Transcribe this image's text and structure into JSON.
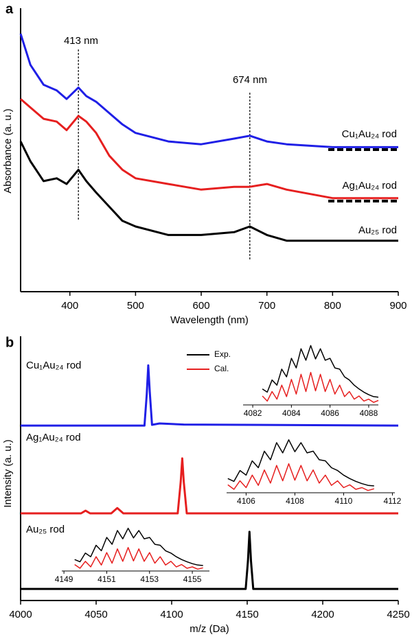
{
  "chart_data": [
    {
      "type": "line",
      "panel_label": "a",
      "xlabel": "Wavelength (nm)",
      "ylabel": "Absorbance (a. u.)",
      "xlim": [
        325,
        900
      ],
      "ylim": [
        0,
        100
      ],
      "xticks": [
        400,
        500,
        600,
        700,
        800,
        900
      ],
      "x": [
        325,
        340,
        360,
        380,
        395,
        413,
        425,
        440,
        460,
        480,
        500,
        550,
        600,
        650,
        674,
        700,
        730,
        800,
        900
      ],
      "series": [
        {
          "name": "Cu₁Au₂₄ rod",
          "color": "#1f1fe6",
          "values": [
            91,
            80,
            73,
            71,
            68,
            72,
            69,
            67,
            63,
            59,
            56,
            53,
            52,
            54,
            55,
            53,
            52,
            51,
            51
          ]
        },
        {
          "name": "Ag₁Au₂₄ rod",
          "color": "#e61f1f",
          "values": [
            68,
            65,
            61,
            60,
            57,
            62,
            60,
            56,
            48,
            43,
            40,
            38,
            36,
            37,
            37,
            38,
            36,
            33,
            33
          ]
        },
        {
          "name": "Au₂₅ rod",
          "color": "#000000",
          "values": [
            53,
            46,
            39,
            40,
            38,
            43,
            39,
            35,
            30,
            25,
            23,
            20,
            20,
            21,
            23,
            20,
            18,
            18,
            18
          ]
        }
      ],
      "annotations": [
        {
          "text": "413 nm",
          "x": 413
        },
        {
          "text": "674 nm",
          "x": 674
        }
      ]
    },
    {
      "type": "line",
      "panel_label": "b",
      "xlabel": "m/z (Da)",
      "ylabel": "Intensity (a. u.)",
      "xlim": [
        4000,
        4250
      ],
      "ylim": [
        0,
        100
      ],
      "xticks": [
        4000,
        4050,
        4100,
        4150,
        4200,
        4250
      ],
      "series": [
        {
          "name": "Cu₁Au₂₄ rod",
          "color": "#1f1fe6",
          "x": [
            4000,
            4082,
            4083.5,
            4084.5,
            4085.5,
            4087,
            4092,
            4108,
            4250
          ],
          "values": [
            66.2,
            66.2,
            78,
            89,
            79,
            66.5,
            67,
            66.6,
            66.2
          ]
        },
        {
          "name": "Ag₁Au₂₄ rod",
          "color": "#e61f1f",
          "x": [
            4000,
            4040,
            4043,
            4046,
            4060,
            4064,
            4068,
            4104,
            4106,
            4107,
            4108,
            4110,
            4250
          ],
          "values": [
            33,
            33,
            34,
            33,
            33,
            35,
            33,
            33,
            45,
            53.8,
            45,
            33,
            33
          ]
        },
        {
          "name": "Au₂₅ rod",
          "color": "#000000",
          "x": [
            4000,
            4149,
            4150.5,
            4151.5,
            4152.5,
            4154,
            4250
          ],
          "values": [
            4.4,
            4.4,
            15,
            26,
            15,
            4.4,
            4.4
          ]
        }
      ],
      "insets": [
        {
          "xlim": [
            4081.5,
            4088.5
          ],
          "ylim": [
            0,
            100
          ],
          "xticks": [
            4082,
            4084,
            4086,
            4088
          ],
          "x": [
            4082.5,
            4082.75,
            4083,
            4083.25,
            4083.5,
            4083.75,
            4084,
            4084.25,
            4084.5,
            4084.75,
            4085,
            4085.25,
            4085.5,
            4085.75,
            4086,
            4086.25,
            4086.5,
            4086.75,
            4087,
            4087.25,
            4087.5,
            4087.75,
            4088,
            4088.25,
            4088.5
          ],
          "series": [
            {
              "name": "Exp.",
              "color": "#000000",
              "values": [
                25,
                20,
                39,
                31,
                56,
                44,
                73,
                58,
                88,
                70,
                93,
                72,
                88,
                70,
                73,
                58,
                56,
                44,
                39,
                31,
                25,
                20,
                16,
                13,
                12
              ]
            },
            {
              "name": "Cal.",
              "color": "#e61f1f",
              "values": [
                14,
                6,
                21,
                9,
                31,
                13,
                40,
                17,
                48,
                21,
                51,
                22,
                48,
                21,
                40,
                17,
                31,
                13,
                21,
                9,
                14,
                6,
                9,
                4,
                7
              ]
            }
          ]
        },
        {
          "xlim": [
            4105.2,
            4112.1
          ],
          "ylim": [
            0,
            100
          ],
          "xticks": [
            4106,
            4108,
            4110,
            4112
          ],
          "x": [
            4105.25,
            4105.5,
            4105.75,
            4106,
            4106.25,
            4106.5,
            4106.75,
            4107,
            4107.25,
            4107.5,
            4107.75,
            4108,
            4108.25,
            4108.5,
            4108.75,
            4109,
            4109.25,
            4109.5,
            4109.75,
            4110,
            4110.25,
            4110.5,
            4110.75,
            4111,
            4111.25
          ],
          "series": [
            {
              "color": "#000000",
              "values": [
                25,
                20,
                39,
                31,
                56,
                44,
                73,
                58,
                88,
                70,
                93,
                72,
                88,
                70,
                73,
                58,
                56,
                44,
                39,
                31,
                25,
                20,
                16,
                13,
                12
              ]
            },
            {
              "color": "#e61f1f",
              "values": [
                14,
                6,
                21,
                9,
                31,
                13,
                40,
                17,
                48,
                21,
                51,
                22,
                48,
                21,
                40,
                17,
                31,
                13,
                21,
                9,
                14,
                6,
                9,
                4,
                7
              ]
            }
          ]
        },
        {
          "xlim": [
            4148.9,
            4155.8
          ],
          "ylim": [
            0,
            100
          ],
          "xticks": [
            4149,
            4151,
            4153,
            4155
          ],
          "x": [
            4149.5,
            4149.75,
            4150,
            4150.25,
            4150.5,
            4150.75,
            4151,
            4151.25,
            4151.5,
            4151.75,
            4152,
            4152.25,
            4152.5,
            4152.75,
            4153,
            4153.25,
            4153.5,
            4153.75,
            4154,
            4154.25,
            4154.5,
            4154.75,
            4155,
            4155.25,
            4155.5
          ],
          "series": [
            {
              "color": "#000000",
              "values": [
                25,
                20,
                39,
                31,
                56,
                44,
                73,
                58,
                88,
                70,
                93,
                72,
                88,
                70,
                73,
                58,
                56,
                44,
                39,
                31,
                25,
                20,
                16,
                13,
                12
              ]
            },
            {
              "color": "#e61f1f",
              "values": [
                14,
                6,
                21,
                9,
                31,
                13,
                40,
                17,
                48,
                21,
                51,
                22,
                48,
                21,
                40,
                17,
                31,
                13,
                21,
                9,
                14,
                6,
                9,
                4,
                7
              ]
            }
          ]
        }
      ]
    }
  ]
}
